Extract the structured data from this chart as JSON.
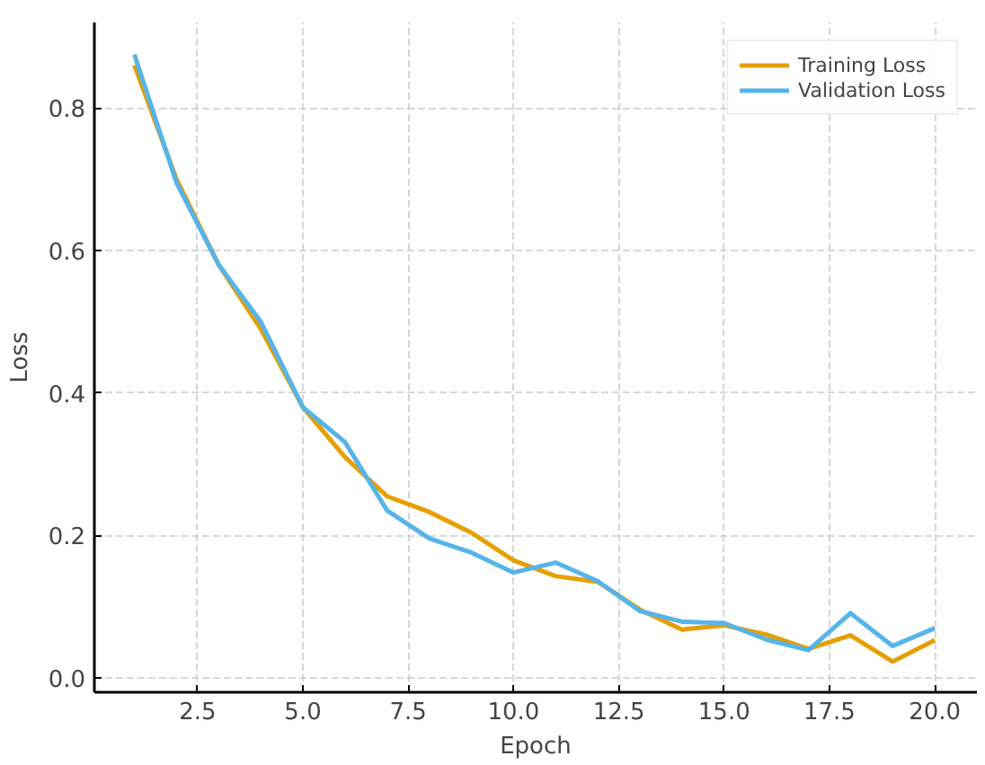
{
  "chart_data": {
    "type": "line",
    "xlabel": "Epoch",
    "ylabel": "Loss",
    "x": [
      1,
      2,
      3,
      4,
      5,
      6,
      7,
      8,
      9,
      10,
      11,
      12,
      13,
      14,
      15,
      16,
      17,
      18,
      19,
      20
    ],
    "series": [
      {
        "name": "Training Loss",
        "color": "#e69f00",
        "values": [
          0.86,
          0.7,
          0.58,
          0.49,
          0.38,
          0.31,
          0.255,
          0.233,
          0.204,
          0.165,
          0.143,
          0.135,
          0.096,
          0.068,
          0.074,
          0.061,
          0.041,
          0.06,
          0.023,
          0.053
        ]
      },
      {
        "name": "Validation Loss",
        "color": "#56b4e9",
        "values": [
          0.875,
          0.695,
          0.58,
          0.5,
          0.38,
          0.331,
          0.235,
          0.196,
          0.176,
          0.148,
          0.162,
          0.136,
          0.094,
          0.079,
          0.077,
          0.054,
          0.039,
          0.091,
          0.045,
          0.07
        ]
      }
    ],
    "xlim": [
      0.05,
      21
    ],
    "ylim": [
      -0.02,
      0.92
    ],
    "xticks": [
      {
        "value": 2.5,
        "label": "2.5"
      },
      {
        "value": 5,
        "label": "5.0"
      },
      {
        "value": 7.5,
        "label": "7.5"
      },
      {
        "value": 10,
        "label": "10.0"
      },
      {
        "value": 12.5,
        "label": "12.5"
      },
      {
        "value": 15,
        "label": "15.0"
      },
      {
        "value": 17.5,
        "label": "17.5"
      },
      {
        "value": 20,
        "label": "20.0"
      }
    ],
    "yticks": [
      {
        "value": 0,
        "label": "0.0"
      },
      {
        "value": 0.2,
        "label": "0.2"
      },
      {
        "value": 0.4,
        "label": "0.4"
      },
      {
        "value": 0.6,
        "label": "0.6"
      },
      {
        "value": 0.8,
        "label": "0.8"
      }
    ],
    "grid": true,
    "legend": "top right",
    "line_style": "solid"
  }
}
